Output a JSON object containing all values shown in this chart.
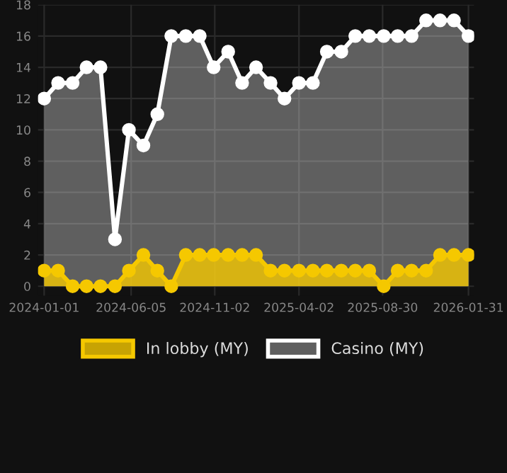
{
  "chart_data": {
    "type": "area",
    "x": [
      "2024-01-01",
      "2024-01-26",
      "2024-02-21",
      "2024-03-17",
      "2024-04-11",
      "2024-05-07",
      "2024-06-01",
      "2024-06-27",
      "2024-07-22",
      "2024-08-16",
      "2024-09-11",
      "2024-10-06",
      "2024-10-31",
      "2024-11-26",
      "2024-12-21",
      "2025-01-15",
      "2025-02-10",
      "2025-03-07",
      "2025-04-02",
      "2025-04-27",
      "2025-05-22",
      "2025-06-17",
      "2025-07-12",
      "2025-08-06",
      "2025-09-01",
      "2025-09-26",
      "2025-10-21",
      "2025-11-16",
      "2025-12-11",
      "2026-01-05",
      "2026-01-31"
    ],
    "series": [
      {
        "name": "Casino (MY)",
        "color": "#ffffff",
        "values": [
          12,
          13,
          13,
          14,
          14,
          3,
          10,
          9,
          11,
          16,
          16,
          16,
          14,
          15,
          13,
          14,
          13,
          12,
          13,
          13,
          15,
          15,
          16,
          16,
          16,
          16,
          16,
          17,
          17,
          17,
          16
        ]
      },
      {
        "name": "In lobby (MY)",
        "color": "#f5c800",
        "values": [
          1,
          1,
          0,
          0,
          0,
          0,
          1,
          2,
          1,
          0,
          2,
          2,
          2,
          2,
          2,
          2,
          1,
          1,
          1,
          1,
          1,
          1,
          1,
          1,
          0,
          1,
          1,
          1,
          2,
          2,
          2
        ]
      }
    ],
    "xlim": [
      "2023-12-21",
      "2026-02-10"
    ],
    "xticks": [
      {
        "value": "2024-01-01",
        "label": "2024-01-01"
      },
      {
        "value": "2024-06-05",
        "label": "2024-06-05"
      },
      {
        "value": "2024-11-02",
        "label": "2024-11-02"
      },
      {
        "value": "2025-04-02",
        "label": "2025-04-02"
      },
      {
        "value": "2025-08-30",
        "label": "2025-08-30"
      },
      {
        "value": "2026-01-31",
        "label": "2026-01-31"
      }
    ],
    "ylim": [
      -0.6,
      18
    ],
    "yticks": [
      0,
      2,
      4,
      6,
      8,
      10,
      12,
      14,
      16,
      18
    ],
    "grid": true,
    "legend": "bottom",
    "marker": "circle",
    "line_style": "solid"
  }
}
